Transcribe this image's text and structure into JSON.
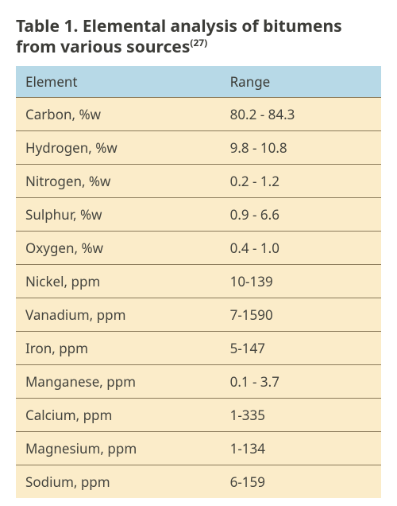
{
  "title_main": "Table 1. Elemental analysis of bitumens from various sources",
  "title_sup": "(27)",
  "table": {
    "type": "table",
    "header_bg": "#b7d9e7",
    "row_bg": "#fbecc9",
    "border_color": "#8a7a5a",
    "text_color": "#3b3b36",
    "title_fontsize": 21,
    "body_fontsize": 17,
    "columns": [
      "Element",
      "Range"
    ],
    "rows": [
      {
        "element": "Carbon, %w",
        "range": "80.2 - 84.3"
      },
      {
        "element": "Hydrogen, %w",
        "range": "9.8 - 10.8"
      },
      {
        "element": "Nitrogen, %w",
        "range": "0.2 - 1.2"
      },
      {
        "element": "Sulphur, %w",
        "range": "0.9 - 6.6"
      },
      {
        "element": "Oxygen, %w",
        "range": "0.4 - 1.0"
      },
      {
        "element": "Nickel, ppm",
        "range": "10-139"
      },
      {
        "element": "Vanadium, ppm",
        "range": "7-1590"
      },
      {
        "element": "Iron, ppm",
        "range": "5-147"
      },
      {
        "element": "Manganese, ppm",
        "range": "0.1 - 3.7"
      },
      {
        "element": "Calcium, ppm",
        "range": "1-335"
      },
      {
        "element": "Magnesium, ppm",
        "range": "1-134"
      },
      {
        "element": "Sodium, ppm",
        "range": "6-159"
      }
    ]
  }
}
